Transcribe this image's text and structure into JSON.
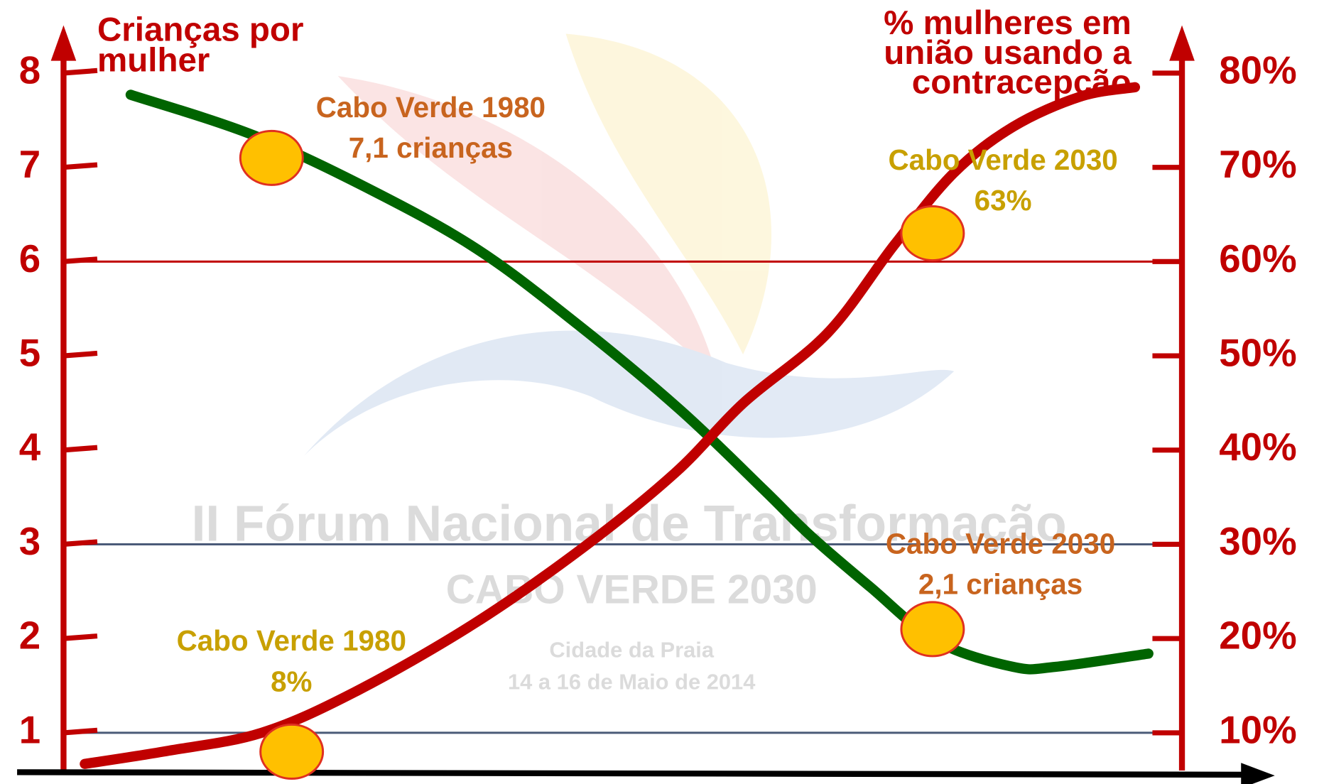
{
  "chart_data": {
    "type": "line",
    "y_title": [
      "Crianças por",
      "mulher"
    ],
    "y2_title": [
      "% mulheres em",
      "união usando a",
      "contracepção"
    ],
    "xlim": [
      0,
      100
    ],
    "ylim": [
      0.6,
      8.6
    ],
    "yticks": [
      1,
      2,
      3,
      4,
      5,
      6,
      7,
      8
    ],
    "y2lim": [
      6,
      86
    ],
    "y2ticks": [
      {
        "value": 10,
        "label": "10%"
      },
      {
        "value": 20,
        "label": "20%"
      },
      {
        "value": 30,
        "label": "30%"
      },
      {
        "value": 40,
        "label": "40%"
      },
      {
        "value": 50,
        "label": "50%"
      },
      {
        "value": 60,
        "label": "60%"
      },
      {
        "value": 70,
        "label": "70%"
      },
      {
        "value": 80,
        "label": "80%"
      }
    ],
    "grid": [
      {
        "value": 6,
        "color": "#c00000"
      },
      {
        "value": 3,
        "color": "#4a5a78"
      },
      {
        "value": 1,
        "color": "#4a5a78"
      }
    ],
    "series": [
      {
        "color": "#006400",
        "axis": "y",
        "x": [
          6.0,
          17.0,
          27.5,
          37.0,
          46.0,
          55.1,
          62.6,
          66.8,
          72.1,
          78.1,
          84.9,
          88.7,
          97.0
        ],
        "values": [
          7.77,
          7.34,
          6.76,
          6.13,
          5.33,
          4.43,
          3.58,
          3.09,
          2.55,
          1.97,
          1.7,
          1.7,
          1.84
        ]
      },
      {
        "color": "#c00000",
        "axis": "y2",
        "x": [
          1.9,
          9.4,
          17.7,
          26.0,
          36.6,
          46.4,
          54.7,
          60.8,
          68.3,
          74.3,
          79.6,
          84.9,
          90.9,
          95.8
        ],
        "values": [
          6.7,
          8.1,
          10.0,
          14.3,
          21.5,
          29.6,
          37.6,
          45.0,
          52.4,
          61.8,
          69.4,
          74.3,
          77.5,
          78.5
        ]
      }
    ],
    "annotations": [
      {
        "text": [
          "Cabo Verde 1980",
          "7,1 crianças"
        ],
        "x": 18.6,
        "y": 7.1,
        "axis": "y",
        "color": "#c8641e"
      },
      {
        "text": [
          "Cabo Verde 1980",
          "8%"
        ],
        "x": 20.4,
        "y": 8,
        "axis": "y2",
        "color": "#c8a000"
      },
      {
        "text": [
          "Cabo Verde 2030",
          "63%"
        ],
        "x": 77.7,
        "y": 63,
        "axis": "y2",
        "color": "#c8a000"
      },
      {
        "text": [
          "Cabo Verde 2030",
          "2,1 crianças"
        ],
        "x": 77.7,
        "y": 2.1,
        "axis": "y",
        "color": "#c8641e"
      }
    ],
    "watermark": [
      "II Fórum Nacional de Transformação",
      "CABO VERDE 2030",
      "Cidade da Praia",
      "14 a 16 de Maio de 2014"
    ]
  }
}
